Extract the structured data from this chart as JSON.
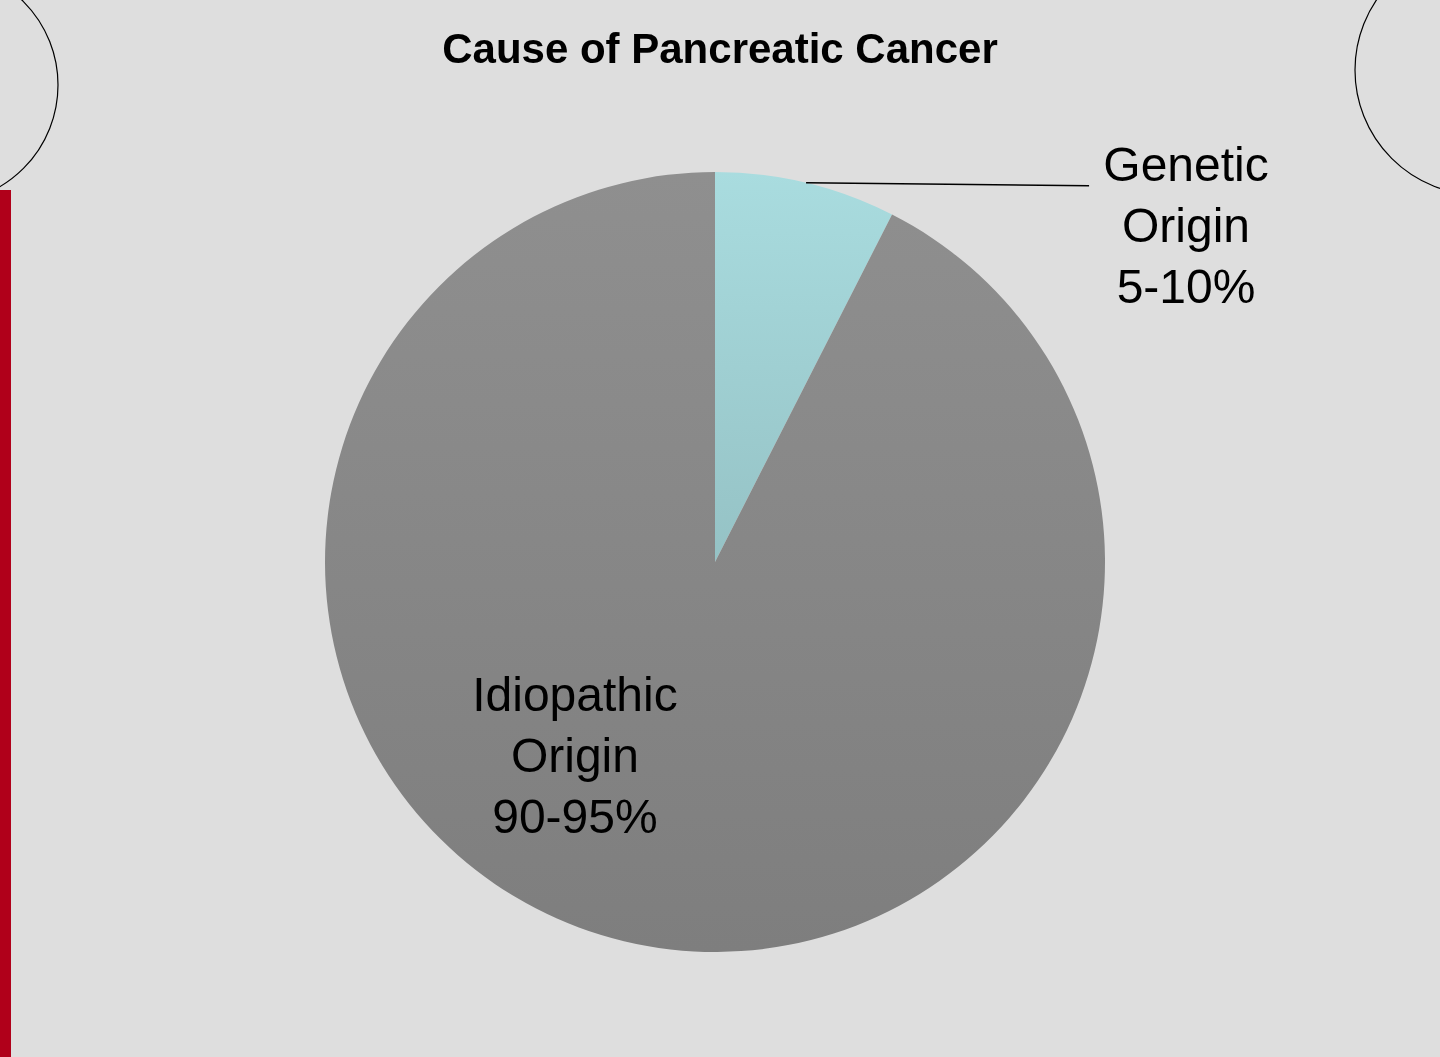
{
  "chart_data": {
    "type": "pie",
    "title": "Cause of Pancreatic Cancer",
    "categories": [
      "Genetic Origin 5-10%",
      "Idiopathic Origin 90-95%"
    ],
    "values": [
      7.5,
      92.5
    ],
    "colors": [
      "#a9dcdf",
      "#8f8f8f"
    ]
  }
}
